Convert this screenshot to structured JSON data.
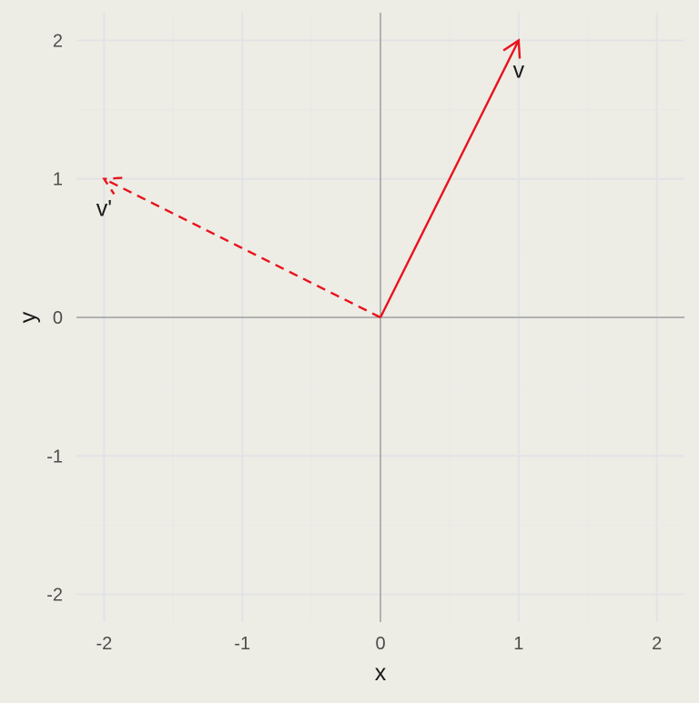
{
  "chart_data": {
    "type": "scatter",
    "title": "",
    "xlabel": "x",
    "ylabel": "y",
    "xlim": [
      -2.2,
      2.2
    ],
    "ylim": [
      -2.2,
      2.2
    ],
    "x_ticks": [
      -2,
      -1,
      0,
      1,
      2
    ],
    "y_ticks": [
      -2,
      -1,
      0,
      1,
      2
    ],
    "x_tick_labels": [
      "-2",
      "-1",
      "0",
      "1",
      "2"
    ],
    "y_tick_labels": [
      "-2",
      "-1",
      "0",
      "1",
      "2"
    ],
    "grid": true,
    "reference_lines": {
      "x": 0,
      "y": 0
    },
    "vectors": [
      {
        "label": "v",
        "from": [
          0,
          0
        ],
        "to": [
          1,
          2
        ],
        "style": "solid",
        "color": "#E8131B"
      },
      {
        "label": "v'",
        "from": [
          0,
          0
        ],
        "to": [
          -2,
          1
        ],
        "style": "dashed",
        "color": "#E8131B"
      }
    ]
  },
  "colors": {
    "background": "#EDEDE6",
    "grid_major": "#E3E3E6",
    "grid_minor": "#E8E8E8",
    "reference_line": "#7F7F7F",
    "vector": "#E8131B"
  }
}
